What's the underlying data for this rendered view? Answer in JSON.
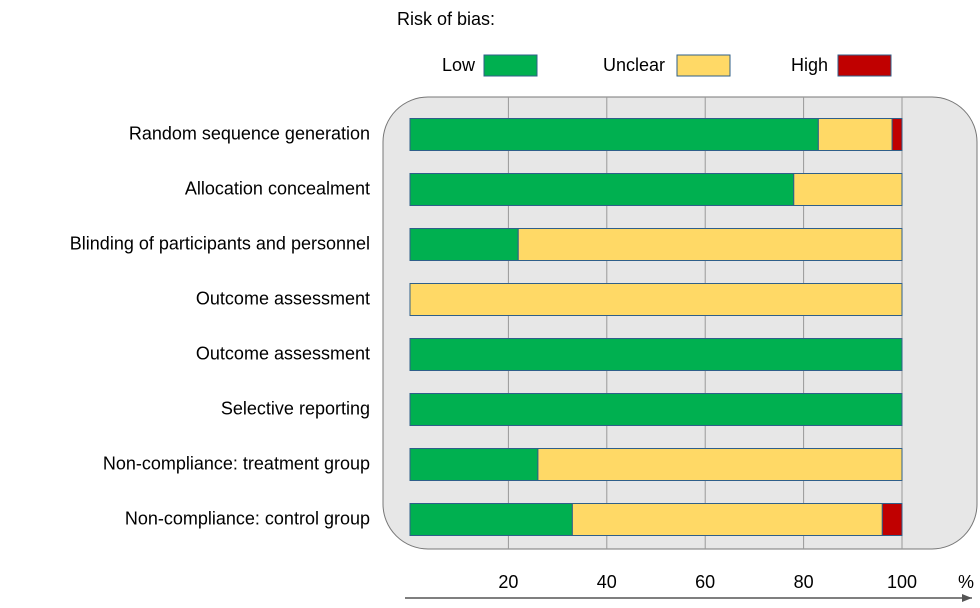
{
  "chart_data": {
    "type": "stacked-bar-horizontal",
    "legend_title": "Risk of bias:",
    "categories": [
      "Random sequence generation",
      "Allocation concealment",
      "Blinding of participants and personnel",
      "Outcome assessment",
      "Outcome assessment",
      "Selective reporting",
      "Non-compliance: treatment group",
      "Non-compliance: control group"
    ],
    "series": [
      {
        "name": "Low",
        "color": "#00b050",
        "values": [
          83,
          78,
          22,
          0,
          100,
          100,
          26,
          33
        ]
      },
      {
        "name": "Unclear",
        "color": "#ffd966",
        "values": [
          15,
          22,
          78,
          100,
          0,
          0,
          74,
          63
        ]
      },
      {
        "name": "High",
        "color": "#c00000",
        "values": [
          2,
          0,
          0,
          0,
          0,
          0,
          0,
          4
        ]
      }
    ],
    "xlim": [
      0,
      100
    ],
    "xticks": [
      20,
      40,
      60,
      80,
      100
    ],
    "x_label": "%",
    "grid": true
  }
}
